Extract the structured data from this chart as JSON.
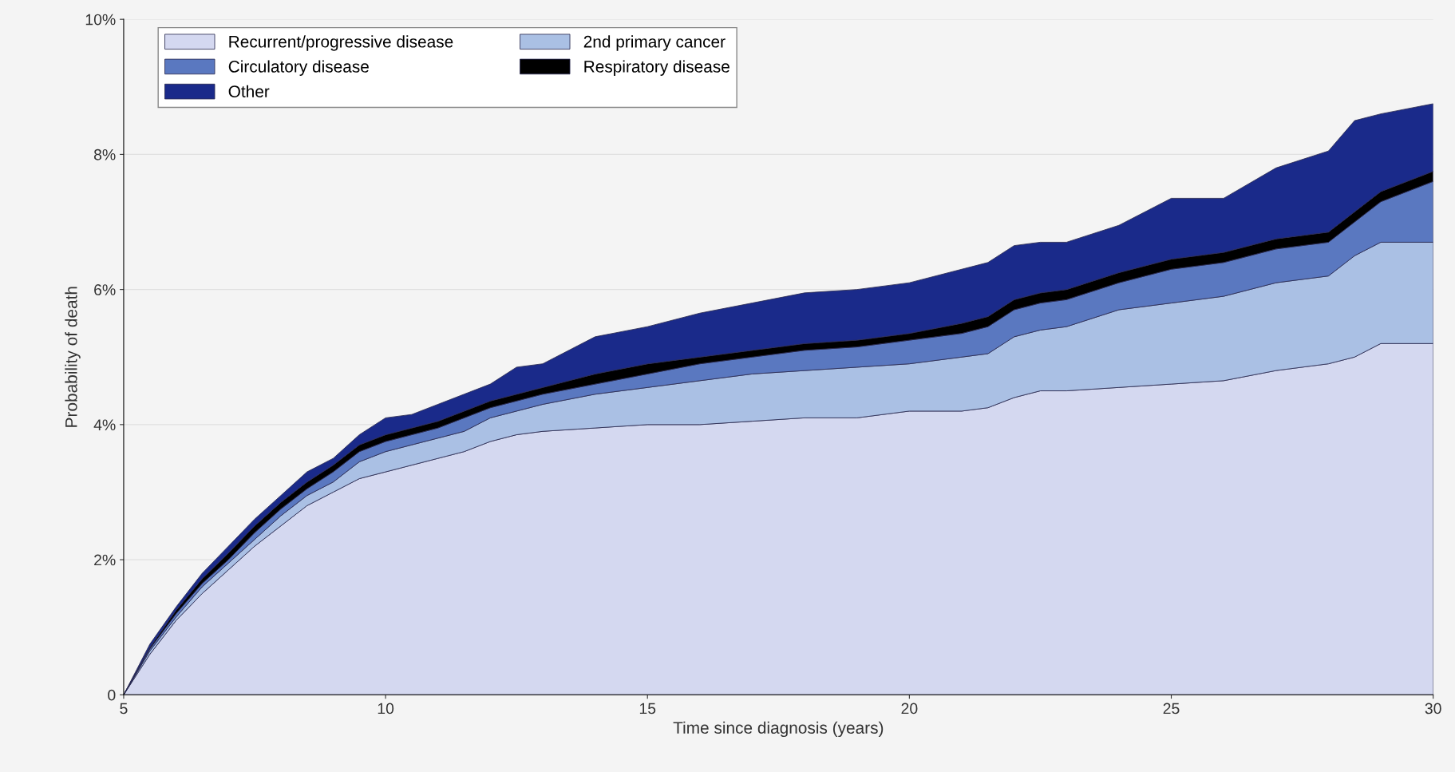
{
  "chart_data": {
    "type": "area",
    "stacked": true,
    "xlabel": "Time since diagnosis (years)",
    "ylabel": "Probability of death",
    "x": [
      5,
      5.5,
      6,
      6.5,
      7,
      7.5,
      8,
      8.5,
      9,
      9.5,
      10,
      10.5,
      11,
      11.5,
      12,
      12.5,
      13,
      14,
      15,
      16,
      17,
      18,
      19,
      20,
      21,
      21.5,
      22,
      22.5,
      23,
      24,
      25,
      26,
      27,
      28,
      28.5,
      29,
      30
    ],
    "series": [
      {
        "name": "Recurrent/progressive disease",
        "color": "#d4d8f0",
        "values": [
          0,
          0.6,
          1.1,
          1.5,
          1.85,
          2.2,
          2.5,
          2.8,
          3.0,
          3.2,
          3.3,
          3.4,
          3.5,
          3.6,
          3.75,
          3.85,
          3.9,
          3.95,
          4.0,
          4.0,
          4.05,
          4.1,
          4.1,
          4.2,
          4.2,
          4.25,
          4.4,
          4.5,
          4.5,
          4.55,
          4.6,
          4.65,
          4.8,
          4.9,
          5.0,
          5.2,
          5.2
        ]
      },
      {
        "name": "2nd primary cancer",
        "color": "#aac0e4",
        "values": [
          0,
          0.05,
          0.05,
          0.1,
          0.1,
          0.1,
          0.15,
          0.15,
          0.15,
          0.25,
          0.3,
          0.3,
          0.3,
          0.3,
          0.35,
          0.35,
          0.4,
          0.5,
          0.55,
          0.65,
          0.7,
          0.7,
          0.75,
          0.7,
          0.8,
          0.8,
          0.9,
          0.9,
          0.95,
          1.15,
          1.2,
          1.25,
          1.3,
          1.3,
          1.5,
          1.5,
          1.5
        ]
      },
      {
        "name": "Circulatory disease",
        "color": "#5a78c0",
        "values": [
          0,
          0.03,
          0.05,
          0.05,
          0.05,
          0.1,
          0.1,
          0.1,
          0.15,
          0.15,
          0.15,
          0.15,
          0.15,
          0.2,
          0.15,
          0.15,
          0.15,
          0.15,
          0.2,
          0.25,
          0.25,
          0.3,
          0.3,
          0.35,
          0.35,
          0.4,
          0.4,
          0.4,
          0.4,
          0.4,
          0.5,
          0.5,
          0.5,
          0.5,
          0.5,
          0.6,
          0.9
        ]
      },
      {
        "name": "Respiratory disease",
        "color": "#000000",
        "values": [
          0,
          0.02,
          0.05,
          0.07,
          0.1,
          0.1,
          0.1,
          0.1,
          0.1,
          0.1,
          0.1,
          0.1,
          0.1,
          0.1,
          0.1,
          0.1,
          0.1,
          0.15,
          0.15,
          0.1,
          0.1,
          0.1,
          0.1,
          0.1,
          0.15,
          0.15,
          0.15,
          0.15,
          0.15,
          0.15,
          0.15,
          0.15,
          0.15,
          0.15,
          0.15,
          0.15,
          0.15
        ]
      },
      {
        "name": "Other",
        "color": "#1a2a8a",
        "values": [
          0,
          0.05,
          0.05,
          0.08,
          0.1,
          0.1,
          0.1,
          0.15,
          0.1,
          0.15,
          0.25,
          0.2,
          0.25,
          0.25,
          0.25,
          0.4,
          0.35,
          0.55,
          0.55,
          0.65,
          0.7,
          0.75,
          0.75,
          0.75,
          0.8,
          0.8,
          0.8,
          0.75,
          0.7,
          0.7,
          0.9,
          0.8,
          1.05,
          1.2,
          1.35,
          1.15,
          1.0
        ]
      }
    ],
    "xlim": [
      5,
      30
    ],
    "xticks": [
      5,
      10,
      15,
      20,
      25,
      30
    ],
    "ylim": [
      0,
      10
    ],
    "yticks": [
      0,
      {
        "value": 2,
        "label": "2%"
      },
      {
        "value": 4,
        "label": "4%"
      },
      {
        "value": 6,
        "label": "6%"
      },
      {
        "value": 8,
        "label": "8%"
      },
      {
        "value": 10,
        "label": "10%"
      }
    ],
    "grid": "y",
    "legend": "top"
  }
}
